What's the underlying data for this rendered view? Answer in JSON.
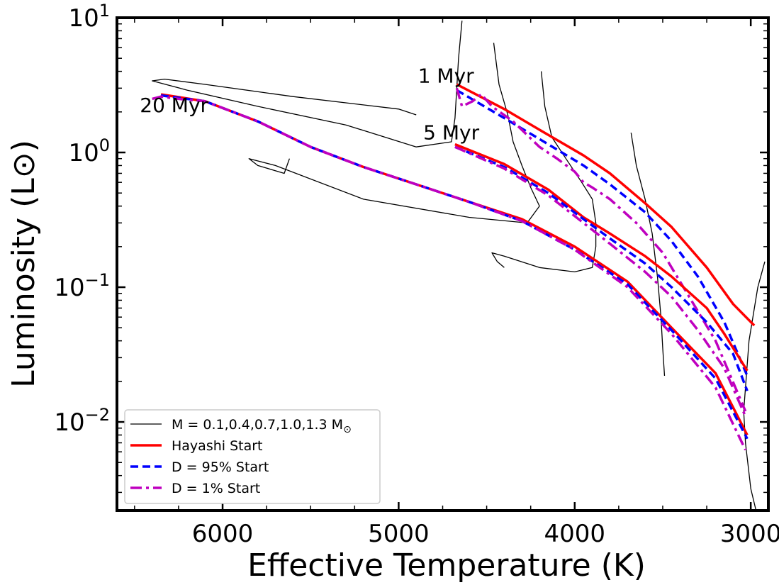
{
  "chart_data": {
    "type": "line",
    "xlabel": "Effective Temperature (K)",
    "ylabel": "Luminosity (L⊙)",
    "xscale": "linear",
    "xlim": [
      6600,
      2900
    ],
    "x_inverted": true,
    "yscale": "log",
    "ylim": [
      0.0022,
      10
    ],
    "x_ticks": [
      6000,
      5000,
      4000,
      3000
    ],
    "x_tick_labels": [
      "6000",
      "5000",
      "4000",
      "3000"
    ],
    "y_ticks": [
      0.01,
      0.1,
      1,
      10
    ],
    "y_tick_labels": [
      {
        "base": "10",
        "exp": "−2"
      },
      {
        "base": "10",
        "exp": "−1"
      },
      {
        "base": "10",
        "exp": "0"
      },
      {
        "base": "10",
        "exp": "1"
      }
    ],
    "legend_position": "lower-left",
    "legend": [
      {
        "label": "M = 0.1,0.4,0.7,1.0,1.3 M",
        "subscript": "⊙",
        "color": "#000000",
        "style": "solid-thin"
      },
      {
        "label": "Hayashi Start",
        "color": "#ff0000",
        "style": "solid"
      },
      {
        "label": "D = 95% Start",
        "color": "#0000ff",
        "style": "dashed"
      },
      {
        "label": "D = 1% Start",
        "color": "#bf00bf",
        "style": "dashdot"
      }
    ],
    "annotations": [
      {
        "text": "1 Myr",
        "x": 4890,
        "y": 3.3
      },
      {
        "text": "5 Myr",
        "x": 4860,
        "y": 1.25
      },
      {
        "text": "20 Myr",
        "x": 6470,
        "y": 2.0
      }
    ],
    "series": [
      {
        "name": "Hayashi Start",
        "group": "1 Myr",
        "color": "#ff0000",
        "points": [
          [
            4670,
            3.2
          ],
          [
            4400,
            2.1
          ],
          [
            4150,
            1.35
          ],
          [
            3950,
            0.95
          ],
          [
            3800,
            0.7
          ],
          [
            3600,
            0.42
          ],
          [
            3450,
            0.28
          ],
          [
            3250,
            0.14
          ],
          [
            3100,
            0.075
          ],
          [
            2980,
            0.052
          ]
        ]
      },
      {
        "name": "D = 95% Start",
        "group": "1 Myr",
        "color": "#0000ff",
        "points": [
          [
            4670,
            2.9
          ],
          [
            4400,
            1.8
          ],
          [
            4150,
            1.15
          ],
          [
            3950,
            0.8
          ],
          [
            3800,
            0.58
          ],
          [
            3600,
            0.36
          ],
          [
            3450,
            0.22
          ],
          [
            3300,
            0.12
          ],
          [
            3150,
            0.055
          ],
          [
            3020,
            0.022
          ]
        ]
      },
      {
        "name": "D = 1% Start",
        "group": "1 Myr",
        "color": "#bf00bf",
        "points": [
          [
            4670,
            3.0
          ],
          [
            4640,
            2.2
          ],
          [
            4580,
            2.4
          ],
          [
            4530,
            2.7
          ],
          [
            4470,
            2.2
          ],
          [
            4350,
            1.7
          ],
          [
            4200,
            1.1
          ],
          [
            4100,
            0.9
          ],
          [
            4000,
            0.72
          ],
          [
            3950,
            0.6
          ],
          [
            3900,
            0.55
          ],
          [
            3800,
            0.45
          ],
          [
            3650,
            0.3
          ],
          [
            3500,
            0.18
          ],
          [
            3350,
            0.085
          ],
          [
            3200,
            0.04
          ],
          [
            3030,
            0.012
          ]
        ]
      },
      {
        "name": "Hayashi Start",
        "group": "5 Myr",
        "color": "#ff0000",
        "points": [
          [
            4680,
            1.15
          ],
          [
            4400,
            0.82
          ],
          [
            4150,
            0.53
          ],
          [
            3950,
            0.33
          ],
          [
            3800,
            0.25
          ],
          [
            3600,
            0.17
          ],
          [
            3450,
            0.12
          ],
          [
            3250,
            0.07
          ],
          [
            3150,
            0.045
          ],
          [
            3020,
            0.024
          ]
        ]
      },
      {
        "name": "D = 95% Start",
        "group": "5 Myr",
        "color": "#0000ff",
        "points": [
          [
            4680,
            1.1
          ],
          [
            4400,
            0.78
          ],
          [
            4150,
            0.5
          ],
          [
            3950,
            0.32
          ],
          [
            3800,
            0.23
          ],
          [
            3600,
            0.15
          ],
          [
            3450,
            0.1
          ],
          [
            3250,
            0.055
          ],
          [
            3100,
            0.032
          ],
          [
            3020,
            0.017
          ]
        ]
      },
      {
        "name": "D = 1% Start",
        "group": "5 Myr",
        "color": "#bf00bf",
        "points": [
          [
            4680,
            1.1
          ],
          [
            4400,
            0.76
          ],
          [
            4150,
            0.48
          ],
          [
            3950,
            0.3
          ],
          [
            3800,
            0.21
          ],
          [
            3600,
            0.13
          ],
          [
            3450,
            0.085
          ],
          [
            3300,
            0.048
          ],
          [
            3150,
            0.025
          ],
          [
            3030,
            0.011
          ]
        ]
      },
      {
        "name": "Hayashi Start",
        "group": "20 Myr",
        "color": "#ff0000",
        "points": [
          [
            6350,
            2.7
          ],
          [
            6100,
            2.4
          ],
          [
            5800,
            1.7
          ],
          [
            5500,
            1.1
          ],
          [
            5200,
            0.78
          ],
          [
            4900,
            0.58
          ],
          [
            4600,
            0.43
          ],
          [
            4300,
            0.32
          ],
          [
            4000,
            0.2
          ],
          [
            3700,
            0.11
          ],
          [
            3450,
            0.05
          ],
          [
            3200,
            0.023
          ],
          [
            3020,
            0.008
          ]
        ]
      },
      {
        "name": "D = 95% Start",
        "group": "20 Myr",
        "color": "#0000ff",
        "points": [
          [
            6350,
            2.65
          ],
          [
            6100,
            2.4
          ],
          [
            5800,
            1.7
          ],
          [
            5500,
            1.1
          ],
          [
            5200,
            0.78
          ],
          [
            4900,
            0.58
          ],
          [
            4600,
            0.43
          ],
          [
            4300,
            0.31
          ],
          [
            4000,
            0.19
          ],
          [
            3700,
            0.105
          ],
          [
            3450,
            0.048
          ],
          [
            3200,
            0.021
          ],
          [
            3020,
            0.0075
          ]
        ]
      },
      {
        "name": "D = 1% Start",
        "group": "20 Myr",
        "color": "#bf00bf",
        "points": [
          [
            6400,
            2.5
          ],
          [
            6350,
            2.6
          ],
          [
            6250,
            2.5
          ],
          [
            6100,
            2.4
          ],
          [
            5800,
            1.7
          ],
          [
            5500,
            1.1
          ],
          [
            5200,
            0.78
          ],
          [
            4900,
            0.58
          ],
          [
            4600,
            0.43
          ],
          [
            4300,
            0.31
          ],
          [
            4000,
            0.19
          ],
          [
            3700,
            0.1
          ],
          [
            3450,
            0.045
          ],
          [
            3200,
            0.018
          ],
          [
            3030,
            0.0062
          ]
        ]
      },
      {
        "name": "M = 1.3",
        "group": "tracks",
        "color": "#000000",
        "points": [
          [
            4640,
            9.5
          ],
          [
            4660,
            5.0
          ],
          [
            4670,
            3.0
          ],
          [
            4680,
            1.8
          ],
          [
            4700,
            1.2
          ],
          [
            4900,
            1.1
          ],
          [
            5300,
            1.6
          ],
          [
            5800,
            2.2
          ],
          [
            6200,
            2.9
          ],
          [
            6400,
            3.4
          ],
          [
            6330,
            3.5
          ],
          [
            6100,
            3.2
          ],
          [
            5600,
            2.6
          ],
          [
            5000,
            2.1
          ],
          [
            4900,
            1.9
          ]
        ]
      },
      {
        "name": "M = 1.0",
        "group": "tracks",
        "color": "#000000",
        "points": [
          [
            4460,
            6.5
          ],
          [
            4430,
            3.2
          ],
          [
            4380,
            1.9
          ],
          [
            4350,
            1.2
          ],
          [
            4300,
            0.8
          ],
          [
            4250,
            0.55
          ],
          [
            4200,
            0.4
          ],
          [
            4270,
            0.3
          ],
          [
            4600,
            0.33
          ],
          [
            5200,
            0.45
          ],
          [
            5700,
            0.8
          ],
          [
            5850,
            0.9
          ],
          [
            5800,
            0.8
          ],
          [
            5650,
            0.7
          ],
          [
            5620,
            0.9
          ]
        ]
      },
      {
        "name": "M = 0.7",
        "group": "tracks",
        "color": "#000000",
        "points": [
          [
            4190,
            4.0
          ],
          [
            4170,
            2.2
          ],
          [
            4130,
            1.3
          ],
          [
            4050,
            0.9
          ],
          [
            3960,
            0.6
          ],
          [
            3900,
            0.45
          ],
          [
            3880,
            0.3
          ],
          [
            3880,
            0.2
          ],
          [
            3900,
            0.14
          ],
          [
            4000,
            0.13
          ],
          [
            4200,
            0.14
          ],
          [
            4400,
            0.17
          ],
          [
            4470,
            0.18
          ],
          [
            4440,
            0.155
          ],
          [
            4400,
            0.14
          ]
        ]
      },
      {
        "name": "M = 0.4",
        "group": "tracks",
        "color": "#000000",
        "points": [
          [
            3680,
            1.4
          ],
          [
            3650,
            0.8
          ],
          [
            3600,
            0.45
          ],
          [
            3560,
            0.25
          ],
          [
            3530,
            0.12
          ],
          [
            3510,
            0.06
          ],
          [
            3500,
            0.035
          ],
          [
            3490,
            0.022
          ]
        ]
      },
      {
        "name": "M = 0.1",
        "group": "tracks",
        "color": "#000000",
        "points": [
          [
            2920,
            0.155
          ],
          [
            2960,
            0.1
          ],
          [
            3010,
            0.04
          ],
          [
            3040,
            0.012
          ],
          [
            3030,
            0.007
          ],
          [
            3000,
            0.0032
          ],
          [
            2970,
            0.0022
          ]
        ]
      }
    ]
  }
}
